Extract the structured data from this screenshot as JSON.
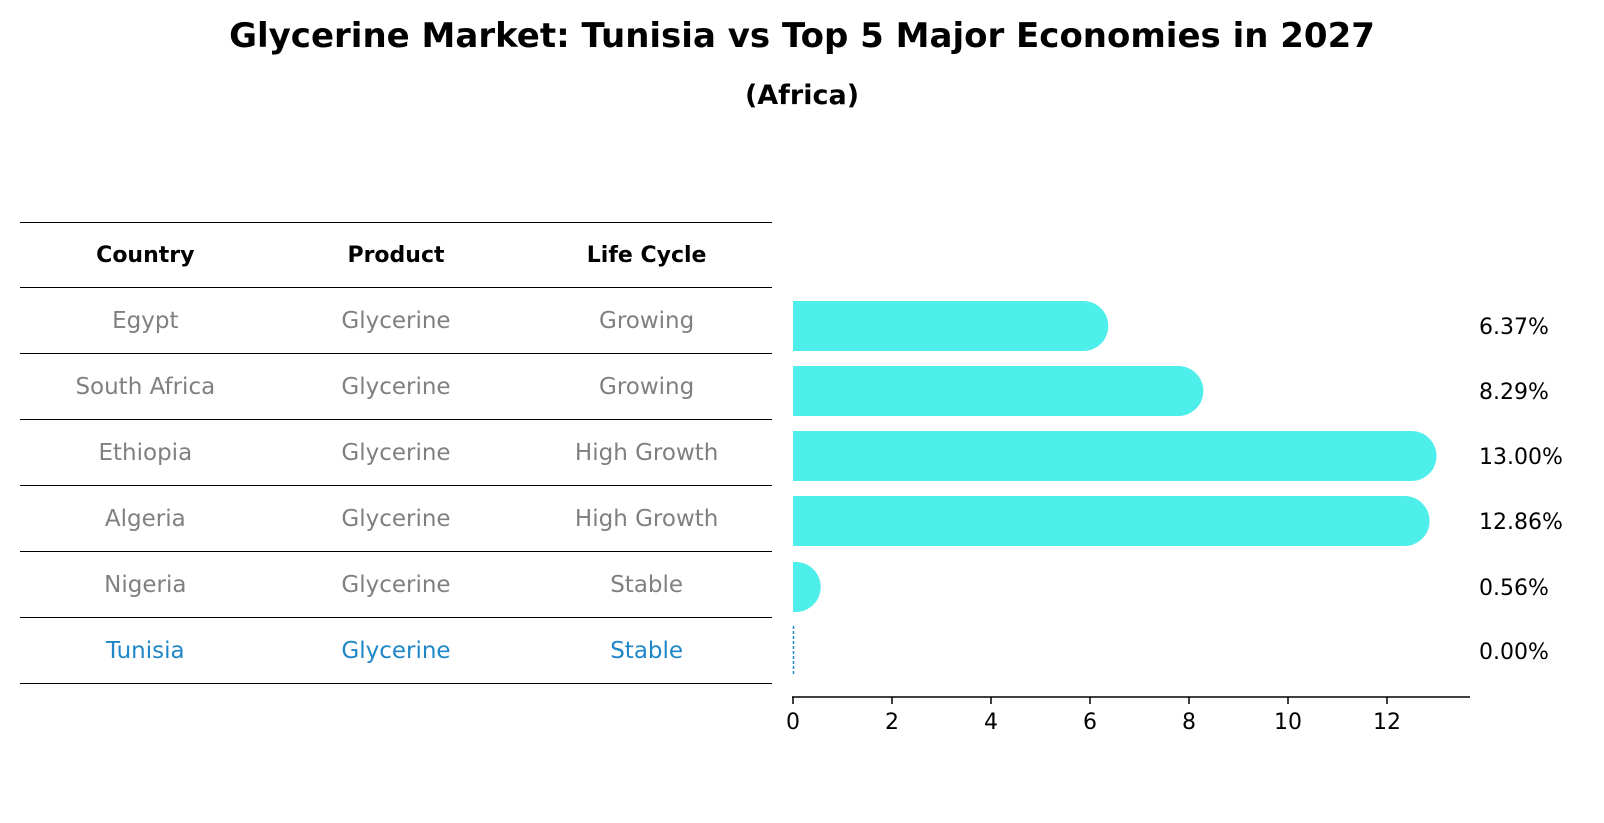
{
  "title": "Glycerine Market: Tunisia vs Top 5 Major Economies in 2027",
  "subtitle": "(Africa)",
  "table": {
    "headers": [
      "Country",
      "Product",
      "Life Cycle"
    ],
    "rows": [
      {
        "country": "Egypt",
        "product": "Glycerine",
        "life_cycle": "Growing"
      },
      {
        "country": "South Africa",
        "product": "Glycerine",
        "life_cycle": "Growing"
      },
      {
        "country": "Ethiopia",
        "product": "Glycerine",
        "life_cycle": "High Growth"
      },
      {
        "country": "Algeria",
        "product": "Glycerine",
        "life_cycle": "High Growth"
      },
      {
        "country": "Nigeria",
        "product": "Glycerine",
        "life_cycle": "Stable"
      },
      {
        "country": "Tunisia",
        "product": "Glycerine",
        "life_cycle": "Stable"
      }
    ],
    "highlight_row": "Tunisia",
    "highlight_color": "#1f87c8",
    "text_color": "#808080"
  },
  "chart_data": {
    "type": "bar",
    "orientation": "horizontal",
    "categories": [
      "Egypt",
      "South Africa",
      "Ethiopia",
      "Algeria",
      "Nigeria",
      "Tunisia"
    ],
    "values": [
      6.37,
      8.29,
      13.0,
      12.86,
      0.56,
      0.0
    ],
    "value_labels": [
      "6.37%",
      "8.29%",
      "13.00%",
      "12.86%",
      "0.56%",
      "0.00%"
    ],
    "xticks": [
      0,
      2,
      4,
      6,
      8,
      10,
      12
    ],
    "xlim": [
      0,
      13.7
    ],
    "bar_color": "#4eeeea",
    "highlight_color": "#1f87c8"
  }
}
